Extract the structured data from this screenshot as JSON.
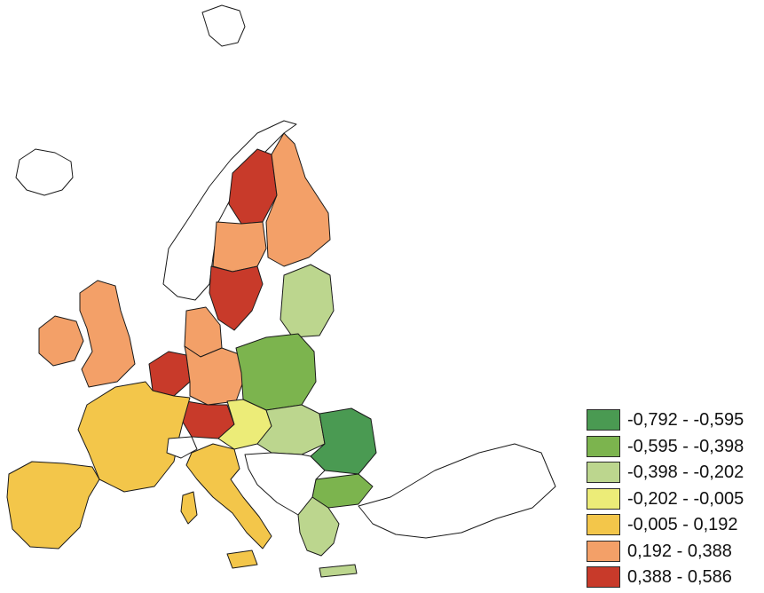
{
  "legend": {
    "items": [
      {
        "label": "-0,792 - -0,595",
        "color": "#4a9a52"
      },
      {
        "label": "-0,595 - -0,398",
        "color": "#7cb44e"
      },
      {
        "label": "-0,398 - -0,202",
        "color": "#bcd68e"
      },
      {
        "label": "-0,202 - -0,005",
        "color": "#ecec78"
      },
      {
        "label": "-0,005 - 0,192",
        "color": "#f3c64a"
      },
      {
        "label": "0,192 - 0,388",
        "color": "#f3a068"
      },
      {
        "label": "0,388 - 0,586",
        "color": "#c83a2a"
      }
    ]
  },
  "regions": [
    {
      "name": "iceland",
      "class": "none"
    },
    {
      "name": "svalbard",
      "class": "none"
    },
    {
      "name": "norway",
      "class": "none"
    },
    {
      "name": "sweden-north",
      "class": 6
    },
    {
      "name": "sweden-middle",
      "class": 5
    },
    {
      "name": "sweden-south",
      "class": 6
    },
    {
      "name": "finland",
      "class": 5
    },
    {
      "name": "baltics",
      "class": 2
    },
    {
      "name": "ireland",
      "class": 5
    },
    {
      "name": "uk",
      "class": 5
    },
    {
      "name": "denmark-north-germany",
      "class": 5
    },
    {
      "name": "benelux",
      "class": 6
    },
    {
      "name": "germany",
      "class": 5
    },
    {
      "name": "south-germany",
      "class": 6
    },
    {
      "name": "poland",
      "class": 1
    },
    {
      "name": "france",
      "class": 4
    },
    {
      "name": "iberia",
      "class": 4
    },
    {
      "name": "switzerland",
      "class": "none"
    },
    {
      "name": "czech-austria",
      "class": 3
    },
    {
      "name": "hungary-slovakia",
      "class": 2
    },
    {
      "name": "romania",
      "class": 0
    },
    {
      "name": "bulgaria",
      "class": 1
    },
    {
      "name": "balkans",
      "class": "none"
    },
    {
      "name": "turkey",
      "class": "none"
    },
    {
      "name": "italy",
      "class": 4
    },
    {
      "name": "greece",
      "class": 2
    }
  ]
}
